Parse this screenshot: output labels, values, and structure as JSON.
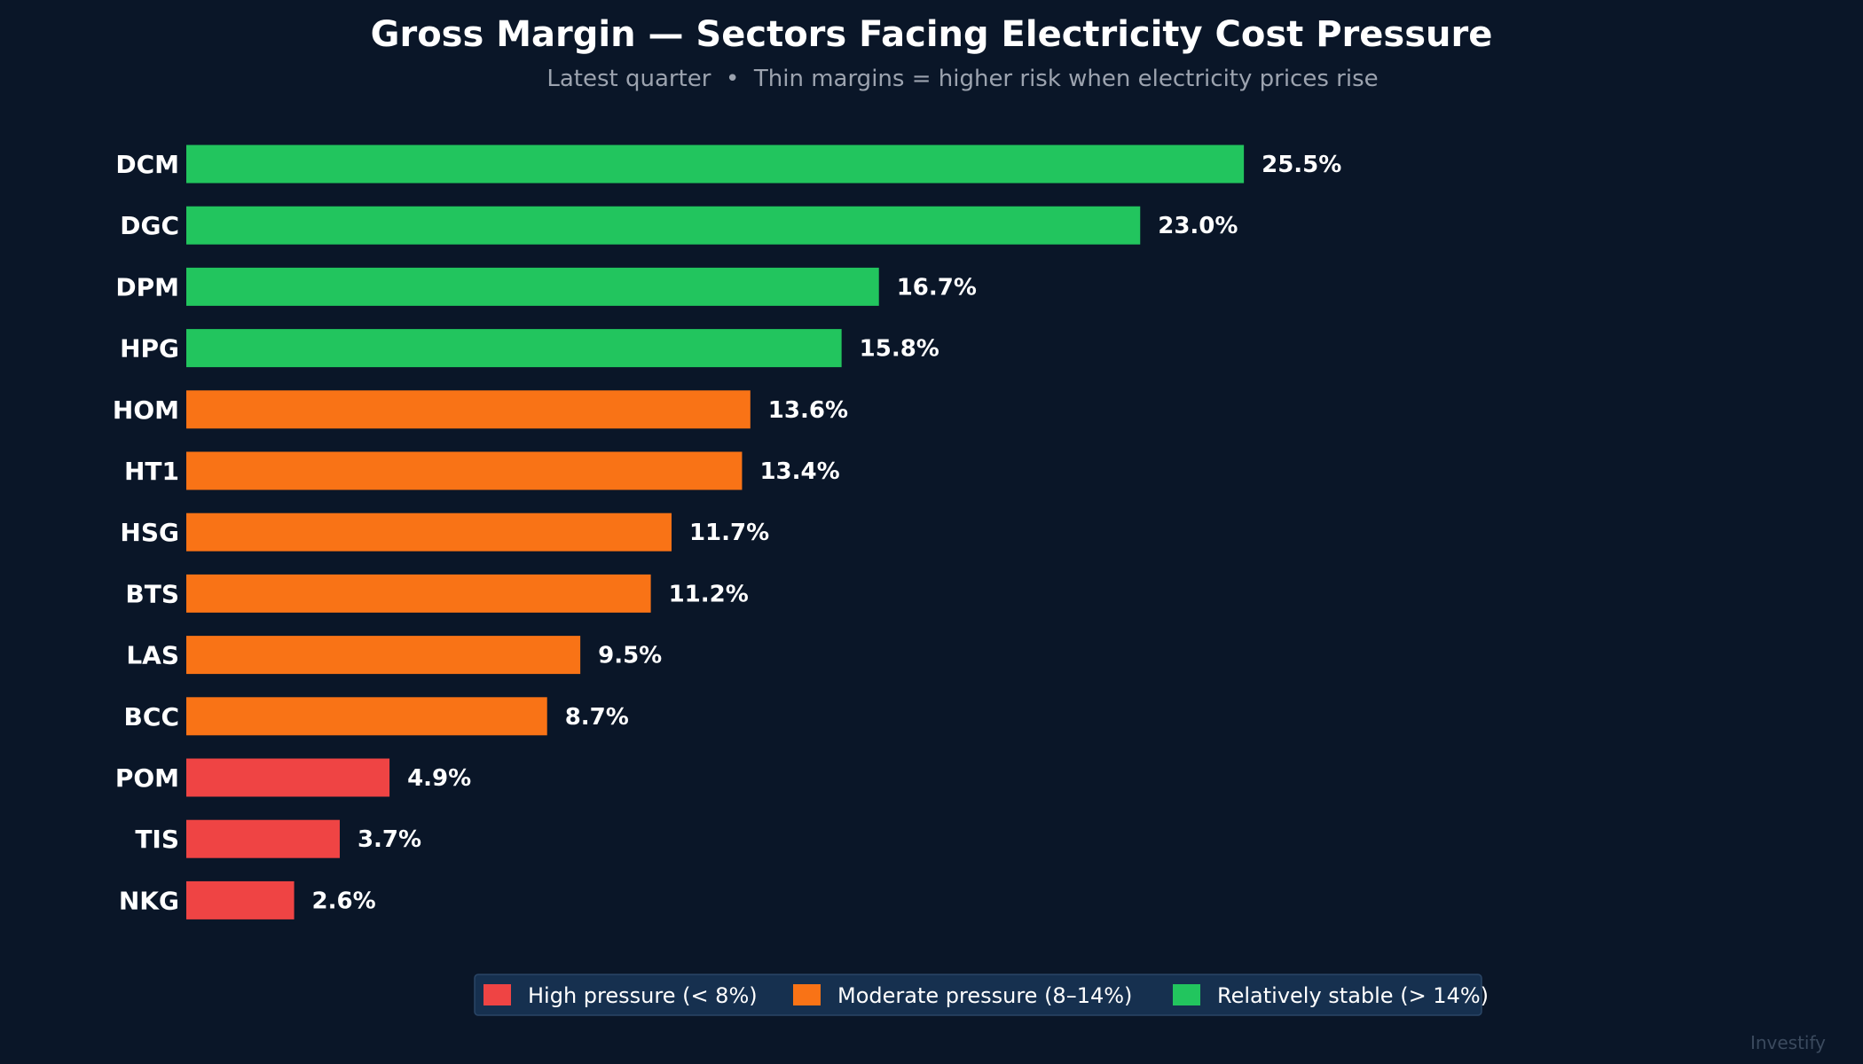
{
  "chart_data": {
    "type": "bar",
    "orientation": "horizontal",
    "title": "Gross Margin — Sectors Facing Electricity Cost Pressure",
    "subtitle": "Latest quarter  •  Thin margins = higher risk when electricity prices rise",
    "categories": [
      "DCM",
      "DGC",
      "DPM",
      "HPG",
      "HOM",
      "HT1",
      "HSG",
      "BTS",
      "LAS",
      "BCC",
      "POM",
      "TIS",
      "NKG"
    ],
    "values": [
      25.5,
      23.0,
      16.7,
      15.8,
      13.6,
      13.4,
      11.7,
      11.2,
      9.5,
      8.7,
      4.9,
      3.7,
      2.6
    ],
    "data_labels": [
      "25.5%",
      "23.0%",
      "16.7%",
      "15.8%",
      "13.6%",
      "13.4%",
      "11.7%",
      "11.2%",
      "9.5%",
      "8.7%",
      "4.9%",
      "3.7%",
      "2.6%"
    ],
    "xlim": [
      0,
      40
    ],
    "grid": false,
    "legend_placement": "bottom-center",
    "legend": [
      {
        "key": "high",
        "label": "High pressure  (< 8%)",
        "color": "#ef4444"
      },
      {
        "key": "moderate",
        "label": "Moderate pressure  (8–14%)",
        "color": "#f97316"
      },
      {
        "key": "stable",
        "label": "Relatively stable  (> 14%)",
        "color": "#22c55e"
      }
    ]
  },
  "colors": {
    "background": "#0a1628",
    "title_text": "#ffffff",
    "subtitle_text": "#9ca3af",
    "label_text": "#ffffff",
    "legend_background": "#16304f",
    "legend_border": "#2a4566",
    "watermark_text": "#3b4a5e"
  },
  "watermark": "Investify"
}
